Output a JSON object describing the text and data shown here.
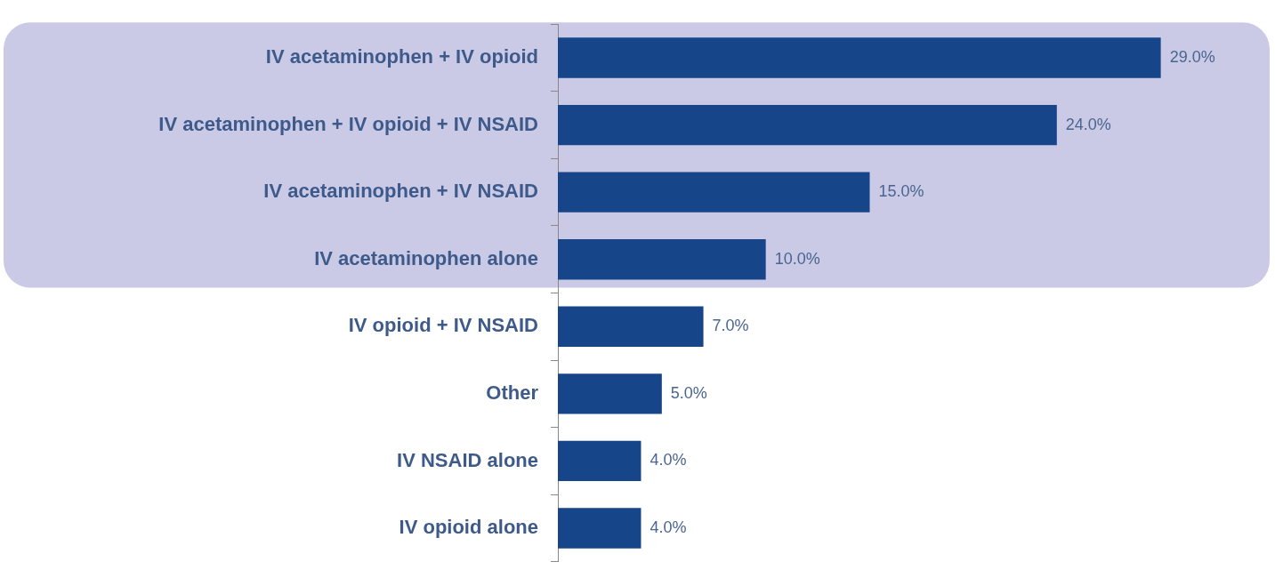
{
  "chart_data": {
    "type": "bar",
    "orientation": "horizontal",
    "categories": [
      "IV acetaminophen + IV opioid",
      "IV acetaminophen + IV opioid + IV NSAID",
      "IV acetaminophen + IV NSAID",
      "IV acetaminophen alone",
      "IV opioid + IV NSAID",
      "Other",
      "IV NSAID alone",
      "IV opioid alone"
    ],
    "values": [
      29,
      24,
      15,
      10,
      7,
      5,
      4,
      4
    ],
    "value_labels": [
      "29.0%",
      "24.0%",
      "15.0%",
      "10.0%",
      "7.0%",
      "5.0%",
      "4.0%",
      "4.0%"
    ],
    "color": "#17458a",
    "legend": false,
    "bands": [
      {
        "axis": "y",
        "from": "IV acetaminophen + IV opioid",
        "to": "IV acetaminophen alone",
        "color": "#cacae6"
      }
    ]
  }
}
